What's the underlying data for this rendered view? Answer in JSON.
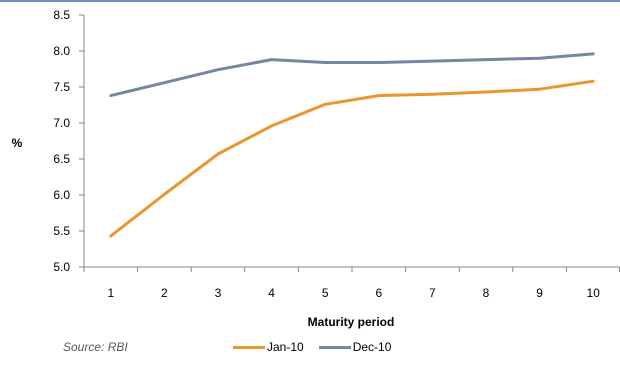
{
  "chart_data": {
    "type": "line",
    "title": "",
    "xlabel": "Maturity period",
    "ylabel": "%",
    "x": [
      1,
      2,
      3,
      4,
      5,
      6,
      7,
      8,
      9,
      10
    ],
    "x_tick_labels": [
      "1",
      "2",
      "3",
      "4",
      "5",
      "6",
      "7",
      "8",
      "9",
      "10"
    ],
    "y_tick_labels": [
      "5.0",
      "5.5",
      "6.0",
      "6.5",
      "7.0",
      "7.5",
      "8.0",
      "8.5"
    ],
    "ylim": [
      5.0,
      8.5
    ],
    "grid": false,
    "legend_position": "bottom",
    "series": [
      {
        "name": "Jan-10",
        "color": "#e8962f",
        "values": [
          5.43,
          6.01,
          6.57,
          6.96,
          7.26,
          7.38,
          7.4,
          7.43,
          7.47,
          7.58
        ]
      },
      {
        "name": "Dec-10",
        "color": "#7585a2",
        "values": [
          7.38,
          7.56,
          7.74,
          7.88,
          7.84,
          7.84,
          7.86,
          7.88,
          7.9,
          7.96
        ]
      }
    ]
  },
  "source_note": "Source: RBI"
}
